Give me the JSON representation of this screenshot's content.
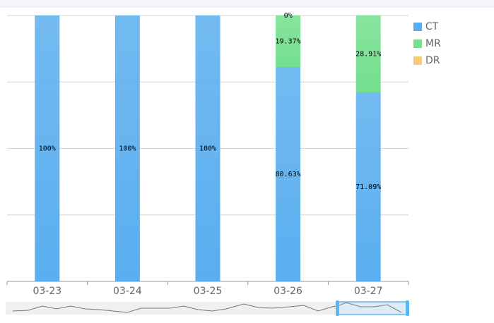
{
  "chart_data": {
    "type": "bar",
    "stacked": true,
    "categories": [
      "03-23",
      "03-24",
      "03-25",
      "03-26",
      "03-27"
    ],
    "series": [
      {
        "name": "CT",
        "color": "#5aaeef",
        "values": [
          100,
          100,
          100,
          80.63,
          71.09
        ],
        "value_labels": [
          "100%",
          "100%",
          "100%",
          "80.63%",
          "71.09%"
        ]
      },
      {
        "name": "MR",
        "color": "#74df8e",
        "values": [
          0,
          0,
          0,
          19.37,
          28.91
        ],
        "value_labels": [
          null,
          null,
          null,
          "19.37%",
          "28.91%"
        ]
      },
      {
        "name": "DR",
        "color": "#f7ca7a",
        "values": [
          0,
          0,
          0,
          0,
          0
        ],
        "value_labels": [
          null,
          null,
          null,
          "0%",
          null
        ]
      }
    ],
    "ylim": [
      0,
      100
    ],
    "yticks": [
      0,
      25,
      50,
      75,
      100
    ],
    "grid": true,
    "legend": "right"
  }
}
